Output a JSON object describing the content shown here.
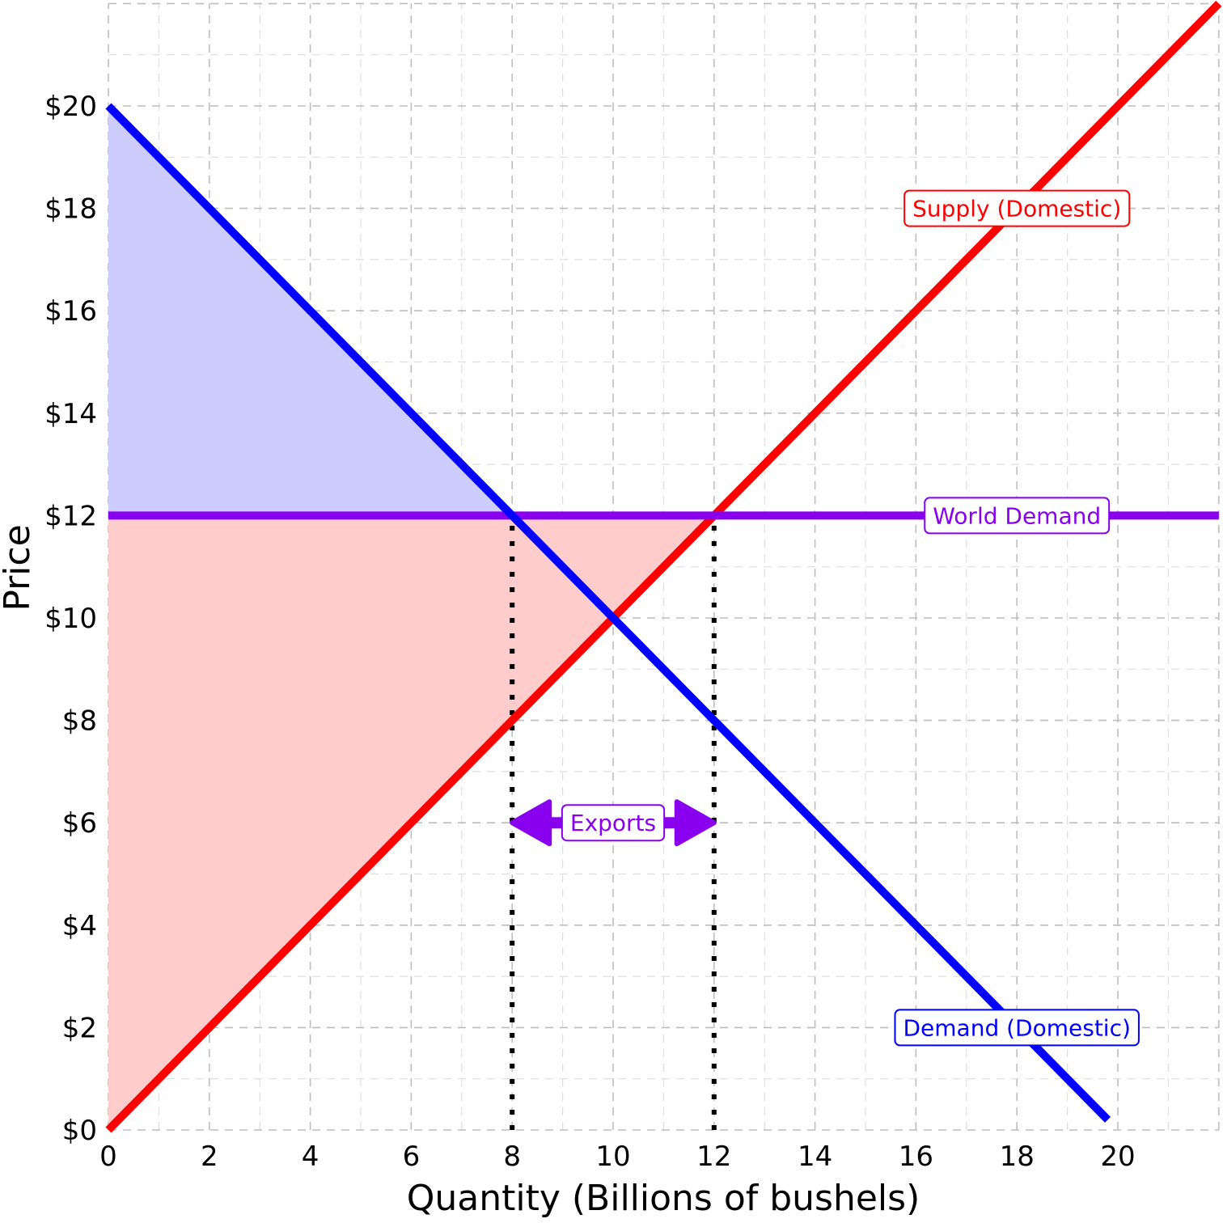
{
  "chart_data": {
    "type": "line",
    "xlabel": "Quantity (Billions of bushels)",
    "ylabel": "Price",
    "xlim": [
      0,
      22
    ],
    "ylim": [
      0,
      22
    ],
    "x_ticks": [
      0,
      2,
      4,
      6,
      8,
      10,
      12,
      14,
      16,
      18,
      20
    ],
    "y_ticks": [
      0,
      2,
      4,
      6,
      8,
      10,
      12,
      14,
      16,
      18,
      20
    ],
    "y_tick_labels": [
      "$0",
      "$2",
      "$4",
      "$6",
      "$8",
      "$10",
      "$12",
      "$14",
      "$16",
      "$18",
      "$20"
    ],
    "grid": true,
    "series": [
      {
        "name": "Supply (Domestic)",
        "color": "#ff0000",
        "points": [
          [
            0,
            0
          ],
          [
            22,
            22
          ]
        ]
      },
      {
        "name": "Demand (Domestic)",
        "color": "#0000ff",
        "points": [
          [
            0,
            20
          ],
          [
            19.8,
            0.2
          ]
        ]
      },
      {
        "name": "World Demand",
        "color": "#8800ee",
        "points": [
          [
            0,
            12
          ],
          [
            22,
            12
          ]
        ]
      }
    ],
    "shaded_areas": [
      {
        "fill": "#ccccff",
        "points": [
          [
            0,
            20
          ],
          [
            8,
            12
          ],
          [
            0,
            12
          ]
        ]
      },
      {
        "fill": "#ffcccc",
        "points": [
          [
            0,
            0
          ],
          [
            12,
            12
          ],
          [
            0,
            12
          ]
        ]
      }
    ],
    "labels": [
      {
        "text": "Supply (Domestic)",
        "x": 18,
        "y": 18,
        "color": "#ff0000"
      },
      {
        "text": "World Demand",
        "x": 18,
        "y": 12,
        "color": "#8800ee"
      },
      {
        "text": "Demand (Domestic)",
        "x": 18,
        "y": 2,
        "color": "#0000ff"
      }
    ],
    "reference_lines": [
      {
        "x": 8,
        "y_from": 0,
        "y_to": 12
      },
      {
        "x": 12,
        "y_from": 0,
        "y_to": 12
      }
    ],
    "annotation": {
      "text": "Exports",
      "x_from": 8,
      "x_to": 12,
      "y": 6,
      "color": "#8800ee"
    }
  }
}
